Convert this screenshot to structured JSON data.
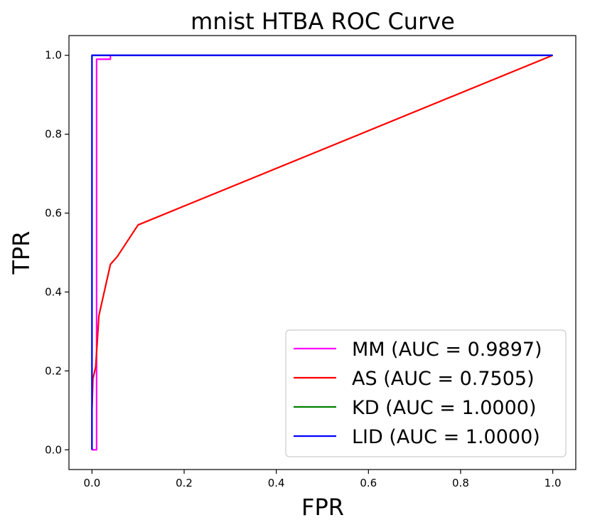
{
  "chart_data": {
    "type": "line",
    "title": "mnist HTBA ROC Curve",
    "xlabel": "FPR",
    "ylabel": "TPR",
    "xlim": [
      -0.05,
      1.05
    ],
    "ylim": [
      -0.05,
      1.05
    ],
    "xticks": [
      "0.0",
      "0.2",
      "0.4",
      "0.6",
      "0.8",
      "1.0"
    ],
    "yticks": [
      "0.0",
      "0.2",
      "0.4",
      "0.6",
      "0.8",
      "1.0"
    ],
    "grid": false,
    "legend_position": "lower-right",
    "series": [
      {
        "name": "MM (AUC = 0.9897)",
        "color": "#ff00ff",
        "points": [
          [
            0.0,
            0.0
          ],
          [
            0.01,
            0.0
          ],
          [
            0.01,
            0.99
          ],
          [
            0.04,
            0.99
          ],
          [
            0.04,
            1.0
          ],
          [
            1.0,
            1.0
          ]
        ]
      },
      {
        "name": "AS (AUC = 0.7505)",
        "color": "#ff0000",
        "points": [
          [
            0.0,
            0.0
          ],
          [
            0.0,
            0.1
          ],
          [
            0.002,
            0.18
          ],
          [
            0.008,
            0.21
          ],
          [
            0.015,
            0.34
          ],
          [
            0.04,
            0.47
          ],
          [
            0.055,
            0.49
          ],
          [
            0.1,
            0.57
          ],
          [
            1.0,
            1.0
          ]
        ]
      },
      {
        "name": "KD (AUC = 1.0000)",
        "color": "#008000",
        "points": [
          [
            0.0,
            0.0
          ],
          [
            0.0,
            1.0
          ],
          [
            1.0,
            1.0
          ]
        ]
      },
      {
        "name": "LID (AUC = 1.0000)",
        "color": "#0000ff",
        "points": [
          [
            0.0,
            0.0
          ],
          [
            0.0,
            1.0
          ],
          [
            1.0,
            1.0
          ]
        ]
      }
    ]
  }
}
